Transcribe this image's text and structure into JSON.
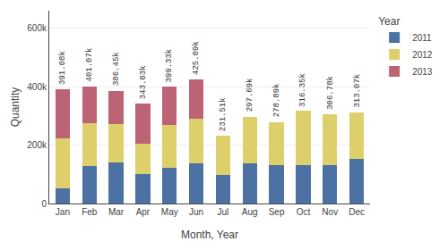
{
  "chart_data": {
    "type": "bar",
    "stacked": true,
    "categories": [
      "Jan",
      "Feb",
      "Mar",
      "Apr",
      "May",
      "Jun",
      "Jul",
      "Aug",
      "Sep",
      "Oct",
      "Nov",
      "Dec"
    ],
    "series": [
      {
        "name": "2011",
        "color": "#4c72a4",
        "values": [
          52000,
          128000,
          140000,
          102000,
          122000,
          138000,
          98000,
          138000,
          132000,
          132000,
          132000,
          153000
        ]
      },
      {
        "name": "2012",
        "color": "#ddd06a",
        "values": [
          172000,
          148000,
          133000,
          103000,
          148000,
          153000,
          133510,
          159690,
          146890,
          184350,
          174780,
          160070
        ]
      },
      {
        "name": "2013",
        "color": "#bc6375",
        "values": [
          167080,
          125070,
          113450,
          138030,
          129330,
          134090,
          0,
          0,
          0,
          0,
          0,
          0
        ]
      }
    ],
    "totals": {
      "values": [
        391080,
        401070,
        386450,
        343030,
        399330,
        425090,
        231510,
        297690,
        278890,
        316350,
        306780,
        313070
      ],
      "value_labels": [
        "391.08k",
        "401.07k",
        "386.45k",
        "343.03k",
        "399.33k",
        "425.09k",
        "231.51k",
        "297.69k",
        "278.89k",
        "316.35k",
        "306.78k",
        "313.07k"
      ]
    },
    "xlabel": "Month, Year",
    "ylabel": "Quantity",
    "ylim": [
      0,
      660000
    ],
    "yticks": [
      0,
      {
        "value": 200000,
        "label": "200k"
      },
      {
        "value": 400000,
        "label": "400k"
      },
      {
        "value": 600000,
        "label": "600k"
      }
    ],
    "legend_title": "Year",
    "legend": "upper right",
    "grid": true
  }
}
